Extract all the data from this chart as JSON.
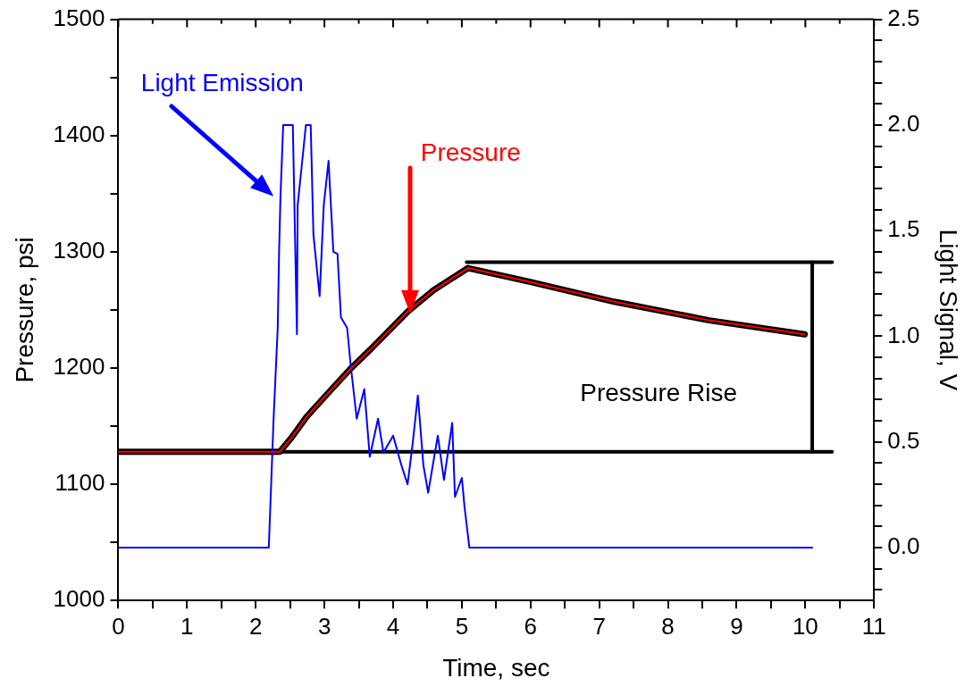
{
  "chart_data": {
    "type": "line",
    "xlabel": "Time, sec",
    "ylabel": "Pressure, psi",
    "y2label": "Light Signal, V",
    "xlim": [
      0,
      11
    ],
    "xticks": [
      0,
      {
        "value": 0.5,
        "label": null
      },
      1,
      {
        "value": 1.5,
        "label": null
      },
      2,
      {
        "value": 2.5,
        "label": null
      },
      3,
      {
        "value": 3.5,
        "label": null
      },
      4,
      {
        "value": 4.5,
        "label": null
      },
      5,
      {
        "value": 5.5,
        "label": null
      },
      6,
      {
        "value": 6.5,
        "label": null
      },
      7,
      {
        "value": 7.5,
        "label": null
      },
      8,
      {
        "value": 8.5,
        "label": null
      },
      9,
      {
        "value": 9.5,
        "label": null
      },
      10,
      {
        "value": 10.5,
        "label": null
      },
      11
    ],
    "ylim": [
      1000,
      1500
    ],
    "yticks": [
      1000,
      {
        "value": 1050,
        "label": null
      },
      1100,
      {
        "value": 1150,
        "label": null
      },
      1200,
      {
        "value": 1250,
        "label": null
      },
      1300,
      {
        "value": 1350,
        "label": null
      },
      1400,
      {
        "value": 1450,
        "label": null
      },
      1500
    ],
    "y2lim": [
      -0.25,
      2.5
    ],
    "y2ticks": [
      {
        "value": -0.2,
        "label": null
      },
      {
        "value": -0.1,
        "label": null
      },
      {
        "value": 0,
        "label": "0.0"
      },
      {
        "value": 0.1,
        "label": null
      },
      {
        "value": 0.2,
        "label": null
      },
      {
        "value": 0.3,
        "label": null
      },
      {
        "value": 0.4,
        "label": null
      },
      0.5,
      {
        "value": 0.6,
        "label": null
      },
      {
        "value": 0.7,
        "label": null
      },
      {
        "value": 0.8,
        "label": null
      },
      {
        "value": 0.9,
        "label": null
      },
      {
        "value": 1,
        "label": "1.0"
      },
      {
        "value": 1.1,
        "label": null
      },
      {
        "value": 1.2,
        "label": null
      },
      {
        "value": 1.3,
        "label": null
      },
      {
        "value": 1.4,
        "label": null
      },
      1.5,
      {
        "value": 1.6,
        "label": null
      },
      {
        "value": 1.7,
        "label": null
      },
      {
        "value": 1.8,
        "label": null
      },
      {
        "value": 1.9,
        "label": null
      },
      {
        "value": 2,
        "label": "2.0"
      },
      {
        "value": 2.1,
        "label": null
      },
      {
        "value": 2.2,
        "label": null
      },
      {
        "value": 2.3,
        "label": null
      },
      {
        "value": 2.4,
        "label": null
      },
      2.5
    ],
    "grid": false,
    "legend": false,
    "marker": "none",
    "line_style": "solid",
    "annotations": [
      "Pressure Rise"
    ],
    "series": [
      {
        "color": "#000000",
        "x": [
          0,
          1,
          2,
          2.35,
          2.52,
          2.74,
          3.0,
          3.39,
          3.67,
          4.22,
          4.59,
          5.09,
          6,
          7.22,
          8.6,
          9.99
        ],
        "values": [
          1128,
          1128,
          1128,
          1128,
          1140,
          1158,
          1175,
          1200,
          1216,
          1249,
          1267,
          1286,
          1274,
          1257,
          1241,
          1229
        ]
      },
      {
        "name": "Pressure",
        "color": "#ff0000",
        "x": [
          0,
          1,
          2,
          2.35,
          2.52,
          2.74,
          3.0,
          3.39,
          3.67,
          4.22,
          4.59,
          5.09,
          6,
          7.22,
          8.6,
          9.99
        ],
        "values": [
          1128,
          1128,
          1128,
          1128,
          1140,
          1158,
          1175,
          1200,
          1216,
          1249,
          1267,
          1286,
          1274,
          1257,
          1241,
          1229
        ]
      },
      {
        "name": "Light Emission",
        "color": "#0000ff",
        "axis": "y2",
        "x": [
          0,
          2.19,
          2.26,
          2.32,
          2.34,
          2.36,
          2.4,
          2.47,
          2.54,
          2.6,
          2.61,
          2.68,
          2.73,
          2.8,
          2.84,
          2.93,
          2.99,
          3.06,
          3.13,
          3.19,
          3.24,
          3.33,
          3.38,
          3.47,
          3.58,
          3.66,
          3.78,
          3.86,
          4.0,
          4.12,
          4.21,
          4.28,
          4.36,
          4.44,
          4.51,
          4.65,
          4.74,
          4.86,
          4.9,
          5.0,
          5.04,
          5.11,
          10.1
        ],
        "values": [
          0,
          0,
          0.61,
          1.04,
          1.4,
          1.66,
          2.0,
          2.0,
          2.0,
          1.01,
          1.62,
          1.84,
          2.0,
          2.0,
          1.48,
          1.19,
          1.62,
          1.83,
          1.4,
          1.39,
          1.09,
          1.04,
          0.87,
          0.61,
          0.75,
          0.43,
          0.61,
          0.45,
          0.53,
          0.39,
          0.3,
          0.48,
          0.72,
          0.39,
          0.26,
          0.53,
          0.32,
          0.59,
          0.24,
          0.33,
          0.19,
          0,
          0
        ]
      },
      {
        "color": "#000000",
        "x": [
          0,
          10.39
        ],
        "values": [
          1128,
          1128
        ]
      },
      {
        "color": "#000000",
        "x": [
          5.07,
          10.39
        ],
        "values": [
          1291,
          1291
        ]
      },
      {
        "color": "#000000",
        "x": [
          10.1,
          10.1
        ],
        "values": [
          1128,
          1291
        ]
      }
    ]
  }
}
